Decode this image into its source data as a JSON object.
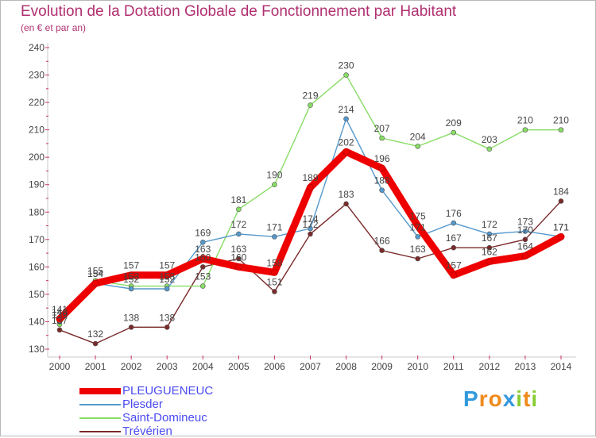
{
  "header": {
    "title": "Evolution de la Dotation Globale de Fonctionnement par Habitant",
    "subtitle": "(en € et par an)"
  },
  "chart_data": {
    "type": "line",
    "title": "Evolution de la Dotation Globale de Fonctionnement par Habitant",
    "ylabel": "(en € et par an)",
    "x": [
      "2000",
      "2001",
      "2002",
      "2003",
      "2004",
      "2005",
      "2006",
      "2007",
      "2008",
      "2009",
      "2010",
      "2011",
      "2012",
      "2013",
      "2014"
    ],
    "ylim": [
      130,
      240
    ],
    "yticks": [
      130,
      140,
      150,
      160,
      170,
      180,
      190,
      200,
      210,
      220,
      230,
      240
    ],
    "grid": false,
    "series": [
      {
        "name": "Trévérien",
        "color": "#7a2a2a",
        "values": [
          137,
          132,
          138,
          138,
          160,
          163,
          151,
          172,
          183,
          166,
          163,
          167,
          167,
          170,
          184
        ]
      },
      {
        "name": "Saint-Domineuc",
        "color": "#88dd66",
        "values": [
          139,
          155,
          153,
          153,
          153,
          181,
          190,
          219,
          230,
          207,
          204,
          209,
          203,
          210,
          210
        ]
      },
      {
        "name": "Plesder",
        "color": "#5599cc",
        "values": [
          140,
          154,
          152,
          152,
          169,
          172,
          171,
          174,
          214,
          188,
          171,
          176,
          172,
          173,
          171
        ]
      },
      {
        "name": "PLEUGUENEUC",
        "color": "#ee0000",
        "values": [
          141,
          154,
          157,
          157,
          163,
          160,
          158,
          189,
          202,
          196,
          175,
          157,
          162,
          164,
          171
        ]
      }
    ]
  },
  "legend": {
    "items": [
      {
        "label": "PLEUGUENEUC",
        "color": "#ee0000"
      },
      {
        "label": "Plesder",
        "color": "#5599cc"
      },
      {
        "label": "Saint-Domineuc",
        "color": "#88dd66"
      },
      {
        "label": "Trévérien",
        "color": "#7a2a2a"
      }
    ]
  },
  "logo": {
    "letters": [
      "P",
      "r",
      "o",
      "x",
      "i",
      "t",
      "i"
    ],
    "colors": [
      "#3399dd",
      "#f08a1c",
      "#f08a1c",
      "#3399dd",
      "#88cc33",
      "#f08a1c",
      "#88cc33"
    ]
  }
}
